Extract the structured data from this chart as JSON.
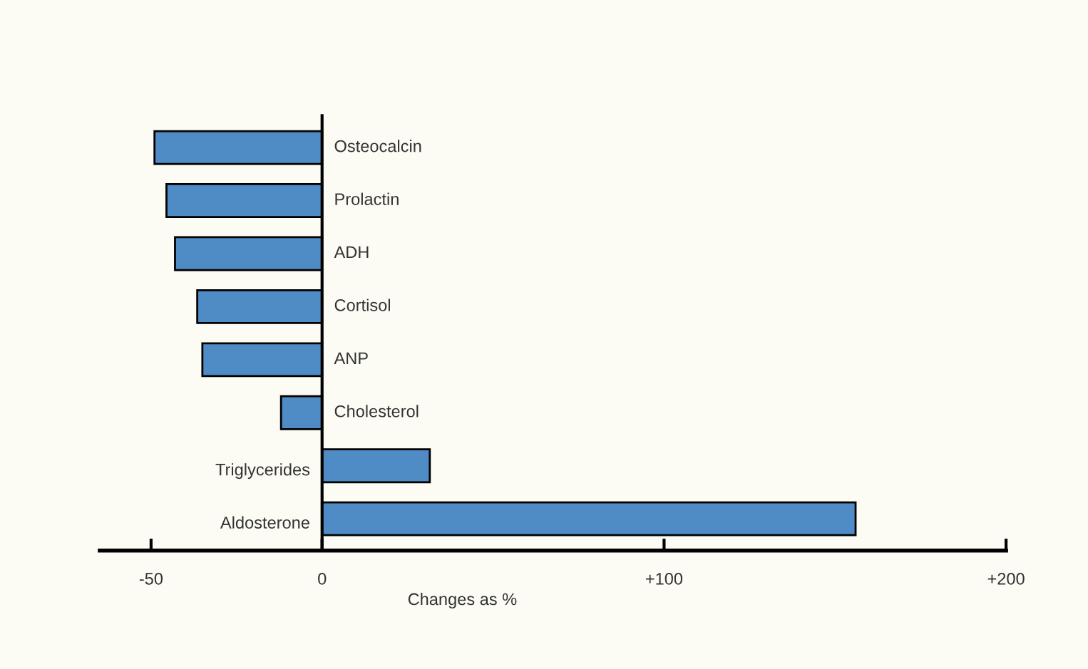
{
  "chart_data": {
    "type": "bar",
    "orientation": "horizontal",
    "xlabel": "Changes as %",
    "categories": [
      "Osteocalcin",
      "Prolactin",
      "ADH",
      "Cortisol",
      "ANP",
      "Cholesterol",
      "Triglycerides",
      "Aldosterone"
    ],
    "values": [
      -49,
      -45.5,
      -43,
      -36.5,
      -35,
      -12,
      31.5,
      156
    ],
    "color": "#4f8bc4",
    "xlim": [
      -65,
      200
    ],
    "xticks": [
      -50,
      0,
      {
        "value": 100,
        "label": "+100"
      },
      {
        "value": 200,
        "label": "+200"
      }
    ],
    "grid": false,
    "legend": false
  }
}
